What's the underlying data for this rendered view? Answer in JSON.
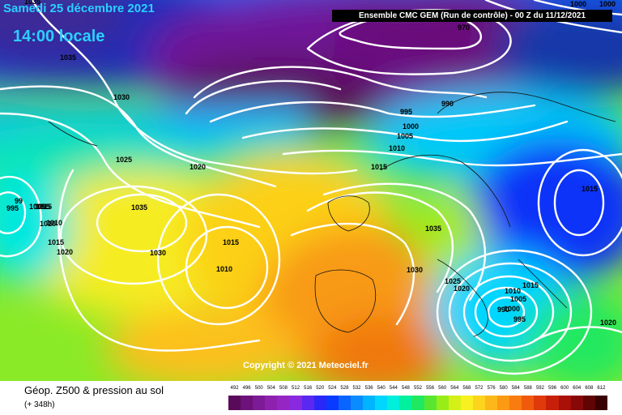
{
  "header": {
    "date": "Samedi 25 décembre 2021",
    "local_time": "14:00 locale",
    "run_info": "Ensemble CMC GEM  (Run de contrôle)  - 00 Z du 11/12/2021"
  },
  "copyright": "Copyright © 2021 Meteociel.fr",
  "legend": {
    "title": "Géop. Z500 & pression au sol",
    "forecast_hour": "(+ 348h)",
    "values": [
      "492",
      "496",
      "500",
      "504",
      "508",
      "512",
      "516",
      "520",
      "524",
      "528",
      "532",
      "536",
      "540",
      "544",
      "548",
      "552",
      "556",
      "560",
      "564",
      "568",
      "572",
      "576",
      "580",
      "584",
      "588",
      "592",
      "596",
      "600",
      "604",
      "608",
      "612"
    ],
    "colors": [
      "#5a0a5a",
      "#6c127a",
      "#7d1a96",
      "#8e22ae",
      "#9626c4",
      "#8a2ae0",
      "#5a28f0",
      "#2a28f8",
      "#0a3aff",
      "#0a64ff",
      "#0a8cff",
      "#00b4ff",
      "#00d6ff",
      "#00eedc",
      "#00f0a0",
      "#20e860",
      "#58e630",
      "#98ec18",
      "#d4f018",
      "#f8f020",
      "#fcd41c",
      "#fcb818",
      "#fc9a14",
      "#f87c10",
      "#f05a0c",
      "#e03a0a",
      "#c82008",
      "#a81008",
      "#880808",
      "#600404",
      "#380000"
    ]
  },
  "pressure_labels": [
    {
      "text": "1035"
    },
    {
      "text": "1035"
    },
    {
      "text": "1030"
    },
    {
      "text": "1025"
    },
    {
      "text": "1020"
    },
    {
      "text": "1035"
    },
    {
      "text": "1030"
    },
    {
      "text": "1015"
    },
    {
      "text": "1010"
    },
    {
      "text": "1010"
    },
    {
      "text": "1015"
    },
    {
      "text": "1020"
    },
    {
      "text": "1005"
    },
    {
      "text": "995"
    },
    {
      "text": "99"
    },
    {
      "text": "1015"
    },
    {
      "text": "1005"
    },
    {
      "text": "1010"
    },
    {
      "text": "1000"
    },
    {
      "text": "995"
    },
    {
      "text": "990"
    },
    {
      "text": "970"
    },
    {
      "text": "1000"
    },
    {
      "text": "1005"
    },
    {
      "text": "1010"
    },
    {
      "text": "1015"
    },
    {
      "text": "1035"
    },
    {
      "text": "1030"
    },
    {
      "text": "1025"
    },
    {
      "text": "1020"
    },
    {
      "text": "1010"
    },
    {
      "text": "1005"
    },
    {
      "text": "1015"
    },
    {
      "text": "1000"
    },
    {
      "text": "995"
    },
    {
      "text": "990"
    },
    {
      "text": "1015"
    },
    {
      "text": "1020"
    },
    {
      "text": "1000"
    }
  ]
}
